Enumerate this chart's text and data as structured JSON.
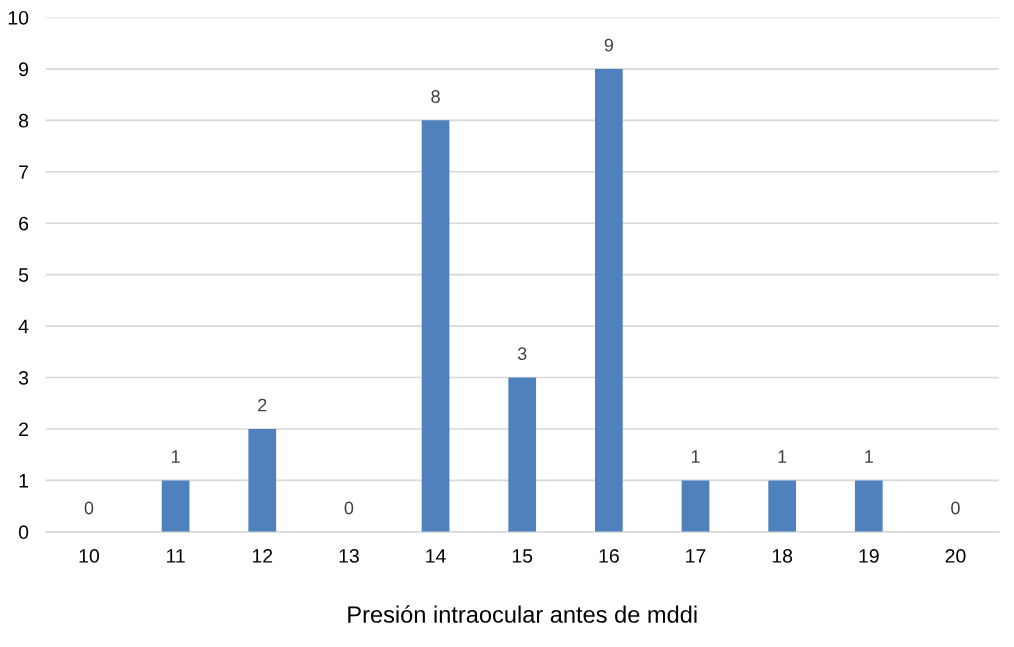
{
  "chart_data": {
    "type": "bar",
    "xlabel": "Presión intraocular antes de mddi",
    "categories": [
      "10",
      "11",
      "12",
      "13",
      "14",
      "15",
      "16",
      "17",
      "18",
      "19",
      "20"
    ],
    "values": [
      0,
      1,
      2,
      0,
      8,
      3,
      9,
      1,
      1,
      1,
      0
    ],
    "color": "#4f81bd",
    "ylim": [
      0,
      10
    ],
    "yticks": [
      0,
      1,
      2,
      3,
      4,
      5,
      6,
      7,
      8,
      9,
      10
    ],
    "grid": "y",
    "data_labels": true
  }
}
